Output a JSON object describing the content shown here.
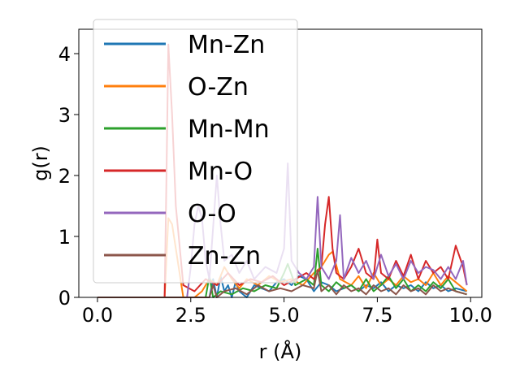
{
  "chart_data": {
    "type": "line",
    "xlabel": "r (Å)",
    "ylabel": "g(r)",
    "xlim": [
      -0.5,
      10.3
    ],
    "ylim": [
      0,
      4.4
    ],
    "xticks": [
      "0.0",
      "2.5",
      "5.0",
      "7.5",
      "10.0"
    ],
    "yticks": [
      "0",
      "1",
      "2",
      "3",
      "4"
    ],
    "grid": false,
    "legend_position": "upper-left",
    "series": [
      {
        "name": "Mn-Zn",
        "color": "#1f77b4",
        "x": [
          0,
          3.0,
          3.1,
          3.2,
          3.3,
          3.4,
          3.5,
          3.6,
          3.7,
          3.8,
          4.0,
          4.2,
          4.4,
          4.6,
          4.8,
          5.0,
          5.2,
          5.4,
          5.6,
          5.8,
          6.0,
          6.2,
          6.4,
          6.6,
          6.8,
          7.0,
          7.2,
          7.4,
          7.6,
          7.8,
          8.0,
          8.2,
          8.4,
          8.6,
          8.8,
          9.0,
          9.2,
          9.4,
          9.6,
          9.9
        ],
        "y": [
          0,
          0,
          0.3,
          0,
          0.35,
          0.1,
          0.2,
          0,
          0.25,
          0.1,
          0,
          0.2,
          0.15,
          0.1,
          0.25,
          0.3,
          0.2,
          0.35,
          0.3,
          0.1,
          0.25,
          0.2,
          0.1,
          0.15,
          0.2,
          0.1,
          0.2,
          0.15,
          0.25,
          0.1,
          0.2,
          0.15,
          0.2,
          0.1,
          0.25,
          0.15,
          0.2,
          0.1,
          0.15,
          0.1
        ]
      },
      {
        "name": "O-Zn",
        "color": "#ff7f0e",
        "x": [
          0,
          1.8,
          1.9,
          2.0,
          2.1,
          2.2,
          2.3,
          2.6,
          2.8,
          3.0,
          3.2,
          3.4,
          3.6,
          3.8,
          4.0,
          4.3,
          4.6,
          4.9,
          5.2,
          5.5,
          5.8,
          6.0,
          6.2,
          6.3,
          6.5,
          6.8,
          7.0,
          7.2,
          7.4,
          7.6,
          7.8,
          8.0,
          8.2,
          8.4,
          8.6,
          8.8,
          9.0,
          9.2,
          9.4,
          9.6,
          9.9
        ],
        "y": [
          0,
          0,
          1.3,
          1.2,
          0.8,
          0.4,
          0,
          0,
          0.1,
          0.3,
          0.2,
          0.5,
          0.3,
          0.15,
          0.3,
          0.2,
          0.35,
          0.25,
          0.3,
          0.2,
          0.4,
          0.5,
          0.7,
          0.75,
          0.3,
          0.2,
          0.35,
          0.15,
          0.4,
          0.2,
          0.3,
          0.2,
          0.35,
          0.25,
          0.3,
          0.2,
          0.4,
          0.2,
          0.35,
          0.25,
          0.1
        ]
      },
      {
        "name": "Mn-Mn",
        "color": "#2ca02c",
        "x": [
          0,
          2.9,
          3.0,
          3.1,
          3.3,
          3.6,
          3.9,
          4.2,
          4.5,
          4.8,
          5.0,
          5.1,
          5.3,
          5.6,
          5.8,
          5.9,
          6.0,
          6.2,
          6.4,
          6.6,
          6.8,
          7.0,
          7.2,
          7.4,
          7.6,
          7.8,
          8.0,
          8.2,
          8.4,
          8.6,
          8.8,
          9.0,
          9.2,
          9.4,
          9.6,
          9.9
        ],
        "y": [
          0,
          0,
          0.35,
          0,
          0.1,
          0.05,
          0.15,
          0.1,
          0.2,
          0.15,
          0.4,
          0.55,
          0.2,
          0.3,
          0.2,
          0.8,
          0.2,
          0.1,
          0.25,
          0.15,
          0.2,
          0.1,
          0.3,
          0.1,
          0.2,
          0.35,
          0.15,
          0.3,
          0.1,
          0.2,
          0.1,
          0.25,
          0.15,
          0.3,
          0.1,
          0.05
        ]
      },
      {
        "name": "Mn-O",
        "color": "#d62728",
        "x": [
          0,
          1.8,
          1.85,
          1.9,
          2.0,
          2.1,
          2.3,
          2.6,
          2.9,
          3.2,
          3.5,
          3.8,
          4.1,
          4.4,
          4.7,
          5.0,
          5.3,
          5.6,
          5.8,
          6.0,
          6.1,
          6.2,
          6.3,
          6.4,
          6.6,
          6.8,
          7.0,
          7.2,
          7.4,
          7.5,
          7.6,
          7.8,
          8.0,
          8.2,
          8.4,
          8.6,
          8.8,
          9.0,
          9.2,
          9.4,
          9.6,
          9.8,
          9.9
        ],
        "y": [
          0,
          0,
          2.0,
          4.15,
          3.0,
          1.5,
          0.2,
          0.1,
          0.3,
          0.2,
          0.4,
          0.2,
          0.3,
          0.25,
          0.35,
          0.2,
          0.3,
          0.4,
          0.3,
          0.5,
          1.2,
          1.65,
          0.8,
          0.4,
          0.3,
          0.5,
          0.8,
          0.4,
          0.3,
          0.95,
          0.4,
          0.3,
          0.6,
          0.35,
          0.7,
          0.3,
          0.6,
          0.4,
          0.5,
          0.3,
          0.85,
          0.5,
          0.2
        ]
      },
      {
        "name": "O-O",
        "color": "#9467bd",
        "x": [
          0,
          2.4,
          2.5,
          2.6,
          2.7,
          2.8,
          2.9,
          3.0,
          3.2,
          3.3,
          3.4,
          3.6,
          3.8,
          4.0,
          4.2,
          4.5,
          4.8,
          5.0,
          5.1,
          5.2,
          5.4,
          5.6,
          5.8,
          5.9,
          6.0,
          6.2,
          6.4,
          6.5,
          6.6,
          6.8,
          7.0,
          7.2,
          7.4,
          7.6,
          7.8,
          8.0,
          8.2,
          8.4,
          8.6,
          8.8,
          9.0,
          9.2,
          9.4,
          9.6,
          9.8,
          9.9
        ],
        "y": [
          0,
          0,
          0.5,
          1.2,
          1.5,
          1.3,
          0.6,
          0.3,
          2.0,
          1.2,
          0.6,
          0.7,
          0.4,
          0.6,
          0.3,
          0.5,
          0.4,
          0.8,
          2.2,
          0.6,
          0.4,
          0.3,
          0.5,
          1.65,
          0.5,
          0.3,
          0.6,
          1.35,
          0.3,
          0.65,
          0.4,
          0.6,
          0.3,
          0.7,
          0.35,
          0.55,
          0.3,
          0.6,
          0.4,
          0.5,
          0.45,
          0.3,
          0.5,
          0.3,
          0.6,
          0.2
        ]
      },
      {
        "name": "Zn-Zn",
        "color": "#8c564b",
        "x": [
          0,
          3.0,
          3.1,
          3.2,
          3.4,
          3.7,
          4.0,
          4.3,
          4.6,
          4.9,
          5.2,
          5.5,
          5.8,
          5.9,
          6.0,
          6.2,
          6.4,
          6.6,
          6.8,
          7.0,
          7.2,
          7.4,
          7.6,
          7.8,
          8.0,
          8.2,
          8.4,
          8.6,
          8.8,
          9.0,
          9.2,
          9.4,
          9.6,
          9.9
        ],
        "y": [
          0,
          0,
          0.2,
          0,
          0.1,
          0.15,
          0.05,
          0.2,
          0.1,
          0.15,
          0.1,
          0.2,
          0.15,
          0.45,
          0.1,
          0.2,
          0.05,
          0.2,
          0.1,
          0.15,
          0.05,
          0.2,
          0.1,
          0.15,
          0.05,
          0.2,
          0.1,
          0.15,
          0.05,
          0.2,
          0.1,
          0.15,
          0.1,
          0.05
        ]
      }
    ]
  }
}
